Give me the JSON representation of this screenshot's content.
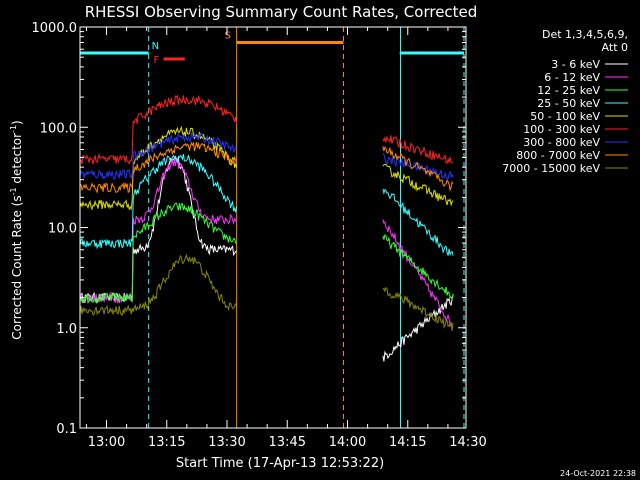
{
  "chart_data": {
    "type": "line",
    "title": "RHESSI Observing Summary Count Rates, Corrected",
    "xlabel": "Start Time (17-Apr-13 12:53:22)",
    "ylabel_main": "Corrected Count Rate (s",
    "ylabel_sup1": "-1",
    "ylabel_mid": " detector",
    "ylabel_sup2": "-1",
    "ylabel_end": ")",
    "ylog": true,
    "ylim": [
      0.1,
      1000
    ],
    "xlim_min": [
      53.4,
      149.5
    ],
    "y_ticks": [
      {
        "v": 1000,
        "label": "1000.0"
      },
      {
        "v": 100,
        "label": "100.0"
      },
      {
        "v": 10,
        "label": "10.0"
      },
      {
        "v": 1,
        "label": "1.0"
      },
      {
        "v": 0.1,
        "label": "0.1"
      }
    ],
    "x_ticks": [
      {
        "v": 60,
        "label": "13:00"
      },
      {
        "v": 75,
        "label": "13:15"
      },
      {
        "v": 90,
        "label": "13:30"
      },
      {
        "v": 105,
        "label": "13:45"
      },
      {
        "v": 120,
        "label": "14:00"
      },
      {
        "v": 135,
        "label": "14:15"
      },
      {
        "v": 150,
        "label": "14:30"
      }
    ],
    "legend_header": [
      "Det 1,3,4,5,6,9,",
      "Att 0"
    ],
    "legend_placement": "right",
    "series": [
      {
        "name": "3 - 6 keV",
        "color": "#ffffff",
        "pre": 2,
        "peak": 50,
        "peakT": 77,
        "w": 3.5,
        "post": 6,
        "tA": 0.5,
        "tB": 2
      },
      {
        "name": "6 - 12 keV",
        "color": "#ff33ff",
        "pre": 2,
        "peak": 45,
        "peakT": 77,
        "w": 4,
        "post": 12,
        "tA": 12,
        "tB": 1
      },
      {
        "name": "12 - 25 keV",
        "color": "#33ff33",
        "pre": 2,
        "peak": 16,
        "peakT": 78,
        "w": 8,
        "post": 7,
        "tA": 8,
        "tB": 2
      },
      {
        "name": "25 - 50 keV",
        "color": "#33ffff",
        "pre": 7,
        "peak": 50,
        "peakT": 78,
        "w": 10,
        "post": 10,
        "tA": 25,
        "tB": 5
      },
      {
        "name": "50 - 100 keV",
        "color": "#dddd00",
        "pre": 17,
        "peak": 90,
        "peakT": 79,
        "w": 12,
        "post": 22,
        "tA": 40,
        "tB": 17
      },
      {
        "name": "100 - 300 keV",
        "color": "#ff2222",
        "pre": 48,
        "peak": 190,
        "peakT": 80,
        "w": 14,
        "post": 60,
        "tA": 80,
        "tB": 45
      },
      {
        "name": "300 - 800 keV",
        "color": "#2233ff",
        "pre": 34,
        "peak": 80,
        "peakT": 81,
        "w": 13,
        "post": 40,
        "tA": 50,
        "tB": 32
      },
      {
        "name": "800 - 7000 keV",
        "color": "#ff8800",
        "pre": 25,
        "peak": 65,
        "peakT": 81,
        "w": 12,
        "post": 30,
        "tA": 62,
        "tB": 25
      },
      {
        "name": "7000 - 15000 keV",
        "color": "#888800",
        "pre": 1.5,
        "peak": 5,
        "peakT": 80,
        "w": 6,
        "post": 1.5,
        "tA": 2.5,
        "tB": 1
      }
    ],
    "gap": [
      92.5,
      128.8
    ],
    "flag_lines": [
      {
        "label": "N",
        "color": "#33ffff",
        "y": 550,
        "x1": 53.4,
        "x2": 70.5,
        "dash_x": 70.5,
        "solid_x": 53.4
      },
      {
        "label": "S",
        "color": "#ff8800",
        "y": 700,
        "x1": 92.4,
        "x2": 119,
        "dash_x": 119,
        "solid_x": 92.4
      },
      {
        "label": "F",
        "color": "#ff2222",
        "y": 480,
        "x1": 74.2,
        "x2": 79.5
      }
    ],
    "flag_right": {
      "color": "#33ffff",
      "y": 550,
      "x1": 133,
      "x2": 149,
      "solid_x": 133.2,
      "dash_x": 149
    }
  },
  "footer": {
    "date": "24-Oct-2021 22:38"
  }
}
